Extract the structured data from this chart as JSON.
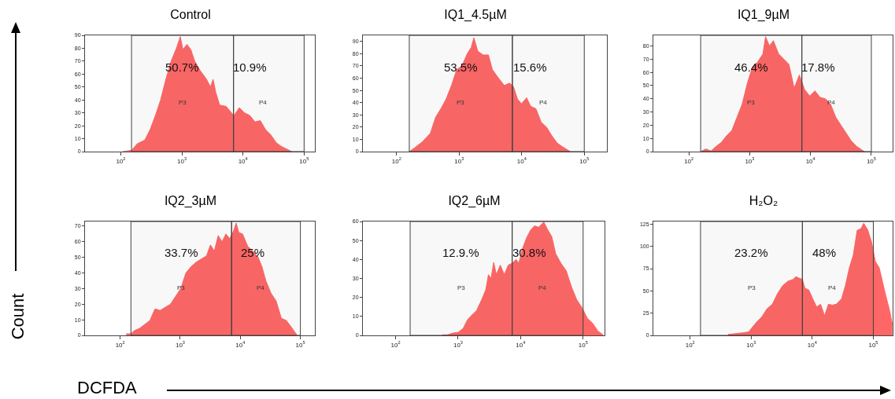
{
  "chart_data": [
    {
      "type": "area",
      "title": "Control",
      "log": "x",
      "xlim": [
        26,
        150000
      ],
      "xticks": [
        {
          "value": 100,
          "label": "10$^{2}$"
        },
        {
          "value": 1000,
          "label": "10$^{3}$"
        },
        {
          "value": 10000,
          "label": "10$^{4}$"
        },
        {
          "value": 100000,
          "label": "10$^{5}$"
        }
      ],
      "ylim": [
        0,
        90
      ],
      "yticks": [
        0,
        10,
        20,
        30,
        40,
        50,
        60,
        70,
        80,
        90
      ],
      "grid": false,
      "x": [
        107,
        151,
        185,
        248,
        302,
        369,
        449,
        547,
        667,
        813,
        942,
        1040,
        1208,
        1400,
        1623,
        1977,
        2531,
        2936,
        3240,
        3578,
        4150,
        5310,
        6470,
        7140,
        8710,
        10600,
        12900,
        15700,
        19200,
        23400,
        28500,
        34800,
        42400,
        56900,
        62800
      ],
      "series": [
        {
          "color": "#ff6666",
          "values": [
            0,
            1,
            6,
            9,
            17,
            28,
            40,
            56,
            70,
            80,
            89,
            79,
            83,
            79,
            70,
            63,
            56,
            50,
            56,
            46,
            36,
            35,
            30,
            28,
            34,
            30,
            28,
            23,
            24,
            17,
            13,
            7,
            4,
            1,
            0
          ]
        }
      ],
      "bands": [
        {
          "axis": "x",
          "from": 150,
          "to": 7000,
          "label": "P3",
          "color": "#404040"
        },
        {
          "axis": "x",
          "from": 7000,
          "to": 100000,
          "label": "P4",
          "color": "#404040"
        }
      ],
      "annotations": [
        "50.7%",
        "10.9%"
      ]
    },
    {
      "type": "area",
      "title": "IQ1_4.5µM",
      "log": "x",
      "xlim": [
        29,
        230000
      ],
      "xticks": [
        {
          "value": 100,
          "label": "10$^{2}$"
        },
        {
          "value": 1000,
          "label": "10$^{3}$"
        },
        {
          "value": 10000,
          "label": "10$^{4}$"
        },
        {
          "value": 100000,
          "label": "10$^{5}$"
        }
      ],
      "ylim": [
        0,
        95
      ],
      "yticks": [
        0,
        10,
        20,
        30,
        40,
        50,
        60,
        70,
        80,
        90
      ],
      "grid": false,
      "x": [
        160,
        194,
        259,
        347,
        421,
        511,
        621,
        755,
        916,
        1110,
        1350,
        1560,
        1720,
        1990,
        2420,
        2940,
        3400,
        4130,
        5270,
        6400,
        7400,
        8560,
        9900,
        12000,
        13900,
        16900,
        20500,
        24900,
        30300,
        36800,
        44600,
        59800
      ],
      "series": [
        {
          "color": "#ff6666",
          "values": [
            0,
            3,
            8,
            15,
            28,
            35,
            43,
            54,
            67,
            70,
            80,
            85,
            93,
            82,
            79,
            79,
            67,
            61,
            54,
            56,
            53,
            43,
            39,
            44,
            37,
            35,
            24,
            20,
            13,
            7,
            4,
            0
          ]
        }
      ],
      "bands": [
        {
          "axis": "x",
          "from": 160,
          "to": 7100,
          "label": "P3",
          "color": "#404040"
        },
        {
          "axis": "x",
          "from": 7100,
          "to": 100000,
          "label": "P4",
          "color": "#404040"
        }
      ],
      "annotations": [
        "53.5%",
        "15.6%"
      ]
    },
    {
      "type": "area",
      "title": "IQ1_9µM",
      "log": "x",
      "xlim": [
        26,
        224000
      ],
      "xticks": [
        {
          "value": 100,
          "label": "10$^{2}$"
        },
        {
          "value": 1000,
          "label": "10$^{3}$"
        },
        {
          "value": 10000,
          "label": "10$^{4}$"
        },
        {
          "value": 100000,
          "label": "10$^{5}$"
        }
      ],
      "ylim": [
        0,
        88
      ],
      "yticks": [
        0,
        10,
        20,
        30,
        40,
        50,
        60,
        70,
        80
      ],
      "grid": false,
      "x": [
        156,
        190,
        231,
        281,
        342,
        417,
        507,
        618,
        752,
        916,
        1110,
        1360,
        1650,
        1820,
        2110,
        2450,
        2980,
        3630,
        4420,
        5380,
        6550,
        7980,
        9710,
        11800,
        14400,
        17500,
        21300,
        26000,
        31600,
        38500,
        46900,
        57000,
        76700
      ],
      "series": [
        {
          "color": "#ff6666",
          "values": [
            0,
            2,
            0.5,
            4,
            7,
            12,
            16,
            26,
            36,
            52,
            64,
            68,
            74,
            87,
            80,
            84,
            74,
            70,
            66,
            48,
            58,
            47,
            42,
            46,
            41,
            40,
            36,
            26,
            20,
            14,
            8,
            4,
            0
          ]
        }
      ],
      "bands": [
        {
          "axis": "x",
          "from": 156,
          "to": 7200,
          "label": "P3",
          "color": "#404040"
        },
        {
          "axis": "x",
          "from": 7200,
          "to": 100000,
          "label": "P4",
          "color": "#404040"
        }
      ],
      "annotations": [
        "46.4%",
        "17.8%"
      ]
    },
    {
      "type": "area",
      "title": "IQ2_3µM",
      "log": "x",
      "xlim": [
        26,
        174000
      ],
      "xticks": [
        {
          "value": 100,
          "label": "10$^{2}$"
        },
        {
          "value": 1000,
          "label": "10$^{3}$"
        },
        {
          "value": 10000,
          "label": "10$^{4}$"
        },
        {
          "value": 100000,
          "label": "10$^{5}$"
        }
      ],
      "ylim": [
        0,
        73
      ],
      "yticks": [
        0,
        10,
        20,
        30,
        40,
        50,
        60,
        70
      ],
      "grid": false,
      "xlabel": "DCFDA",
      "ylabel": "Count",
      "x": [
        126,
        151,
        172,
        210,
        256,
        312,
        380,
        463,
        563,
        687,
        837,
        1020,
        1240,
        1510,
        1850,
        2250,
        2740,
        3180,
        3690,
        4280,
        4960,
        5750,
        6670,
        7730,
        8530,
        9420,
        10900,
        13300,
        16200,
        19800,
        22900,
        26600,
        32400,
        39500,
        48100,
        58600,
        71500,
        87100
      ],
      "series": [
        {
          "color": "#ff6666",
          "values": [
            1,
            1,
            3,
            4.5,
            7,
            9.5,
            17,
            16,
            18,
            20,
            25,
            30,
            40,
            44,
            47,
            49,
            51,
            58,
            54,
            64,
            60,
            65,
            62,
            67,
            72,
            66,
            65,
            57,
            54,
            50,
            44,
            35,
            27,
            22,
            11,
            9.5,
            5,
            0.3
          ]
        }
      ],
      "bands": [
        {
          "axis": "x",
          "from": 151,
          "to": 7150,
          "label": "P3",
          "color": "#404040"
        },
        {
          "axis": "x",
          "from": 7150,
          "to": 100000,
          "label": "P4",
          "color": "#404040"
        }
      ],
      "annotations": [
        "33.7%",
        "25%"
      ]
    },
    {
      "type": "area",
      "title": "IQ2_6µM",
      "log": "x",
      "xlim": [
        30,
        220000
      ],
      "xticks": [
        {
          "value": 100,
          "label": "10$^{2}$"
        },
        {
          "value": 1000,
          "label": "10$^{3}$"
        },
        {
          "value": 10000,
          "label": "10$^{4}$"
        },
        {
          "value": 100000,
          "label": "10$^{5}$"
        }
      ],
      "ylim": [
        0,
        60
      ],
      "yticks": [
        0,
        10,
        20,
        30,
        40,
        50,
        60
      ],
      "grid": false,
      "x": [
        558,
        678,
        824,
        1000,
        1210,
        1400,
        1630,
        1970,
        2400,
        2770,
        3060,
        3370,
        3710,
        4090,
        4730,
        5480,
        6340,
        7330,
        8480,
        9340,
        10800,
        12500,
        14500,
        16700,
        19400,
        23500,
        27200,
        31500,
        36400,
        44200,
        53700,
        65200,
        79200,
        96100,
        117000,
        142000,
        172000,
        209000
      ],
      "series": [
        {
          "color": "#ff6666",
          "values": [
            0.3,
            0.3,
            1.2,
            1.6,
            3.7,
            8,
            10.5,
            13,
            19,
            24,
            32,
            30,
            38.5,
            32,
            37,
            32,
            37,
            38,
            40,
            38,
            46,
            51.5,
            55.6,
            57.7,
            57,
            59.7,
            55.6,
            52,
            43,
            38,
            34,
            25.5,
            18.7,
            14.6,
            9,
            6.4,
            2.3,
            0.3
          ]
        }
      ],
      "bands": [
        {
          "axis": "x",
          "from": 171,
          "to": 7330,
          "label": "P3",
          "color": "#404040"
        },
        {
          "axis": "x",
          "from": 7330,
          "to": 100000,
          "label": "P4",
          "color": "#404040"
        }
      ],
      "annotations": [
        "12.9.%",
        "30.8%"
      ]
    },
    {
      "type": "area",
      "title": "H₂O₂",
      "log": "x",
      "xlim": [
        25,
        207000
      ],
      "xticks": [
        {
          "value": 100,
          "label": "10$^{2}$"
        },
        {
          "value": 1000,
          "label": "10$^{3}$"
        },
        {
          "value": 10000,
          "label": "10$^{4}$"
        },
        {
          "value": 100000,
          "label": "10$^{5}$"
        }
      ],
      "ylim": [
        0,
        128
      ],
      "yticks": [
        0,
        25,
        50,
        75,
        100,
        125
      ],
      "grid": false,
      "x": [
        417,
        560,
        752,
        916,
        1010,
        1230,
        1500,
        1820,
        2220,
        2700,
        3290,
        4010,
        4880,
        5380,
        6240,
        6890,
        7590,
        8790,
        10200,
        11800,
        13700,
        15900,
        18400,
        21300,
        24700,
        30100,
        34900,
        40500,
        46900,
        54300,
        63000,
        69500,
        80500,
        93300,
        108000,
        125000,
        153000,
        186000,
        205000
      ],
      "series": [
        {
          "color": "#ff6666",
          "values": [
            1,
            2,
            3,
            4,
            8,
            15,
            21,
            30,
            35,
            47,
            56,
            61,
            63,
            66,
            64,
            63,
            53,
            51,
            41,
            32,
            35,
            22,
            35,
            34,
            35,
            41,
            56,
            76,
            90,
            118,
            120,
            126,
            119,
            105,
            83,
            76,
            50,
            27,
            12
          ]
        }
      ],
      "bands": [
        {
          "axis": "x",
          "from": 148,
          "to": 6890,
          "label": "P3",
          "color": "#404040"
        },
        {
          "axis": "x",
          "from": 6890,
          "to": 100000,
          "label": "P4",
          "color": "#404040"
        }
      ],
      "annotations": [
        "23.2%",
        "48%"
      ]
    }
  ]
}
